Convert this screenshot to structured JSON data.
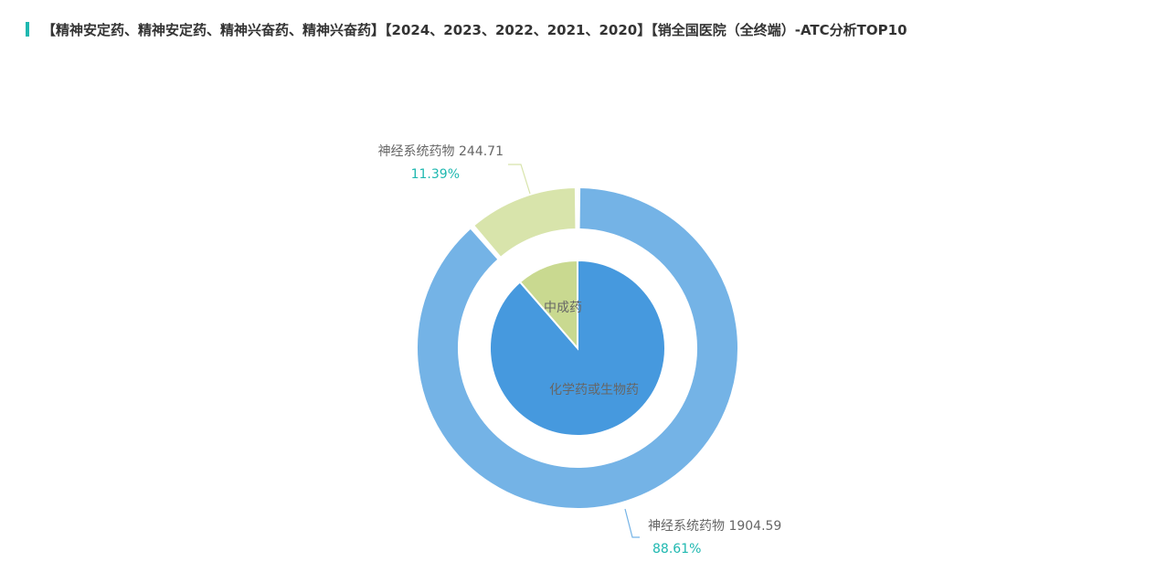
{
  "title": "【精神安定药、精神安定药、精神兴奋药、精神兴奋药】【2024、2023、2022、2021、2020】【销全国医院（全终端）-ATC分析TOP10",
  "chart_data": {
    "type": "pie",
    "subtype": "nested-donut",
    "outer_ring": {
      "slices": [
        {
          "name": "神经系统药物",
          "value": 1904.59,
          "percent": "88.61%",
          "color": "#74b3e6"
        },
        {
          "name": "神经系统药物",
          "value": 244.71,
          "percent": "11.39%",
          "color": "#d8e4ab"
        }
      ]
    },
    "inner_pie": {
      "slices": [
        {
          "name": "化学药或生物药",
          "value": 1904.59,
          "color": "#4699de"
        },
        {
          "name": "中成药",
          "value": 244.71,
          "color": "#c9d990"
        }
      ]
    },
    "legend": "none",
    "accent_color": "#1fb8b0"
  }
}
